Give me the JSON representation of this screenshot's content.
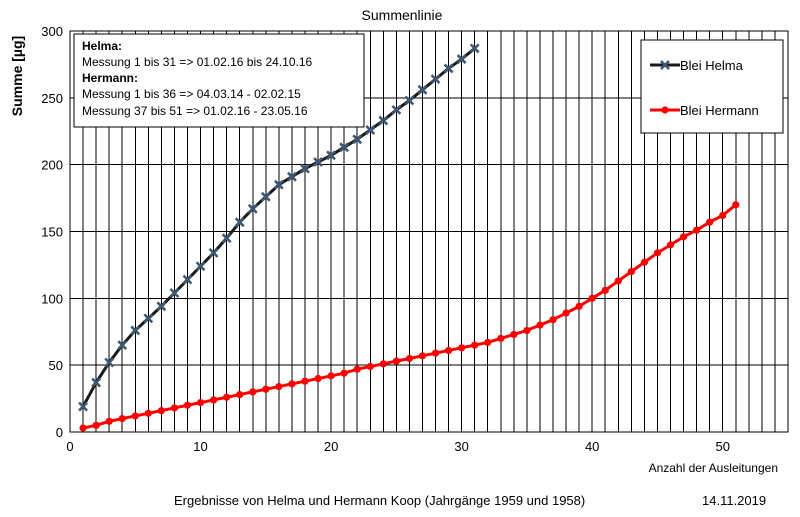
{
  "chart_data": {
    "type": "line",
    "title": "Summenlinie",
    "xlabel": "Anzahl der Ausleitungen",
    "ylabel": "Summe [µg]",
    "xlim": [
      0,
      55
    ],
    "ylim": [
      0,
      300
    ],
    "x_ticks": [
      "0",
      "10",
      "20",
      "30",
      "40",
      "50"
    ],
    "y_ticks": [
      "0",
      "50",
      "100",
      "150",
      "200",
      "250",
      "300"
    ],
    "grid": "vertical every 1, horizontal every 50",
    "legend_position": "right",
    "series": [
      {
        "name": "Blei Helma",
        "color": "#1a1a1a",
        "marker": "x-star",
        "marker_color": "#3d5873",
        "x": [
          1,
          2,
          3,
          4,
          5,
          6,
          7,
          8,
          9,
          10,
          11,
          12,
          13,
          14,
          15,
          16,
          17,
          18,
          19,
          20,
          21,
          22,
          23,
          24,
          25,
          26,
          27,
          28,
          29,
          30,
          31
        ],
        "values": [
          19,
          37,
          52,
          65,
          76,
          85,
          94,
          104,
          114,
          124,
          134,
          145,
          157,
          167,
          176,
          185,
          191,
          197,
          202,
          207,
          213,
          219,
          226,
          233,
          241,
          248,
          256,
          264,
          272,
          279,
          287
        ]
      },
      {
        "name": "Blei Hermann",
        "color": "#ff0000",
        "marker": "circle",
        "marker_color": "#ff0000",
        "x": [
          1,
          2,
          3,
          4,
          5,
          6,
          7,
          8,
          9,
          10,
          11,
          12,
          13,
          14,
          15,
          16,
          17,
          18,
          19,
          20,
          21,
          22,
          23,
          24,
          25,
          26,
          27,
          28,
          29,
          30,
          31,
          32,
          33,
          34,
          35,
          36,
          37,
          38,
          39,
          40,
          41,
          42,
          43,
          44,
          45,
          46,
          47,
          48,
          49,
          50,
          51
        ],
        "values": [
          3,
          5,
          8,
          10,
          12,
          14,
          16,
          18,
          20,
          22,
          24,
          26,
          28,
          30,
          32,
          34,
          36,
          38,
          40,
          42,
          44,
          47,
          49,
          51,
          53,
          55,
          57,
          59,
          61,
          63,
          65,
          67,
          70,
          73,
          76,
          80,
          84,
          89,
          94,
          100,
          106,
          113,
          120,
          127,
          134,
          140,
          146,
          151,
          157,
          162,
          170
        ]
      }
    ]
  },
  "notes": {
    "helma_heading": "Helma:",
    "helma_line1": "Messung 1 bis 31 => 01.02.16 bis 24.10.16",
    "hermann_heading": "Hermann:",
    "hermann_line1": "Messung 1 bis 36 => 04.03.14 - 02.02.15",
    "hermann_line2": "Messung 37 bis 51 => 01.02.16 - 23.05.16"
  },
  "footer": {
    "caption": "Ergebnisse von Helma und Hermann Koop (Jahrgänge 1959 und 1958)",
    "date": "14.11.2019"
  }
}
